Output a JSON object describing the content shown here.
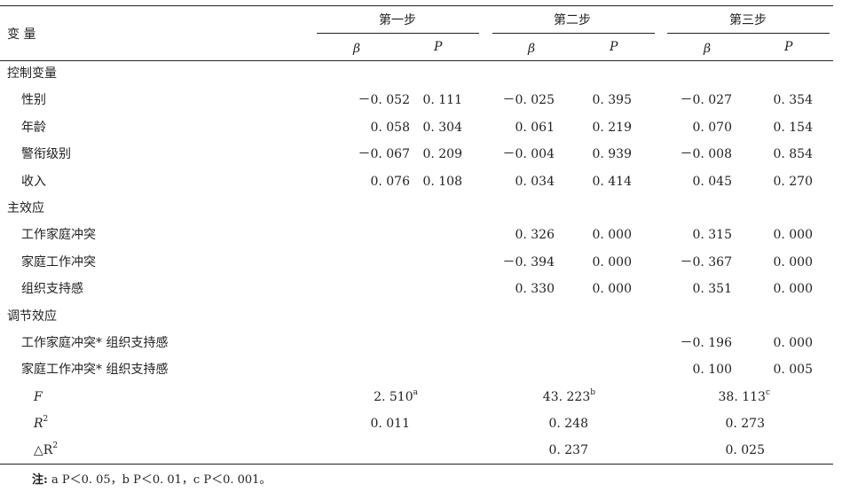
{
  "header": {
    "variable_label": "变 量",
    "groups": [
      "第一步",
      "第二步",
      "第三步"
    ],
    "beta": "β",
    "p": "P"
  },
  "sections": [
    {
      "title": "控制变量",
      "rows": [
        {
          "label": "性别",
          "v": [
            "－0. 052",
            "0. 111",
            "－0. 025",
            "0. 395",
            "－0. 027",
            "0. 354"
          ]
        },
        {
          "label": "年龄",
          "v": [
            "0. 058",
            "0. 304",
            "0. 061",
            "0. 219",
            "0. 070",
            "0. 154"
          ]
        },
        {
          "label": "警衔级别",
          "v": [
            "－0. 067",
            "0. 209",
            "－0. 004",
            "0. 939",
            "－0. 008",
            "0. 854"
          ]
        },
        {
          "label": "收入",
          "v": [
            "0. 076",
            "0. 108",
            "0. 034",
            "0. 414",
            "0. 045",
            "0. 270"
          ]
        }
      ]
    },
    {
      "title": "主效应",
      "rows": [
        {
          "label": "工作家庭冲突",
          "v": [
            "",
            "",
            "0. 326",
            "0. 000",
            "0. 315",
            "0. 000"
          ]
        },
        {
          "label": "家庭工作冲突",
          "v": [
            "",
            "",
            "－0. 394",
            "0. 000",
            "－0. 367",
            "0. 000"
          ]
        },
        {
          "label": "组织支持感",
          "v": [
            "",
            "",
            "0. 330",
            "0. 000",
            "0. 351",
            "0. 000"
          ]
        }
      ]
    },
    {
      "title": "调节效应",
      "rows": [
        {
          "label": "工作家庭冲突* 组织支持感",
          "v": [
            "",
            "",
            "",
            "",
            "－0. 196",
            "0. 000"
          ]
        },
        {
          "label": "家庭工作冲突* 组织支持感",
          "v": [
            "",
            "",
            "",
            "",
            "0. 100",
            "0. 005"
          ]
        }
      ]
    }
  ],
  "stats": {
    "F": {
      "label": "F",
      "values": [
        "2. 510",
        "43. 223",
        "38. 113"
      ],
      "sups": [
        "a",
        "b",
        "c"
      ]
    },
    "R2": {
      "label": "R",
      "sup": "2",
      "values": [
        "0. 011",
        "0. 248",
        "0. 273"
      ]
    },
    "dR2": {
      "label": "△R",
      "sup": "2",
      "values": [
        "",
        "0. 237",
        "0. 025"
      ]
    }
  },
  "note": {
    "prefix": "注:",
    "text": " a P＜0. 05，b P＜0. 01，c P＜0. 001。"
  }
}
